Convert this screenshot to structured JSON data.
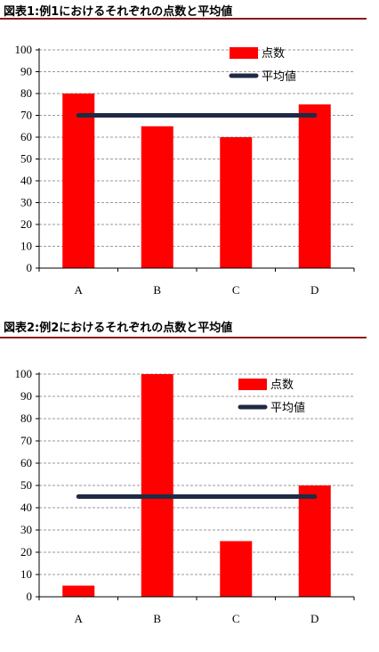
{
  "chart_data": [
    {
      "type": "bar",
      "title": "図表1:例1におけるそれぞれの点数と平均値",
      "categories": [
        "A",
        "B",
        "C",
        "D"
      ],
      "series": [
        {
          "name": "点数",
          "type": "bar",
          "values": [
            80,
            65,
            60,
            75
          ]
        },
        {
          "name": "平均値",
          "type": "line",
          "values": [
            70,
            70,
            70,
            70
          ]
        }
      ],
      "y_ticks": [
        "0",
        "10",
        "20",
        "30",
        "40",
        "50",
        "60",
        "70",
        "80",
        "90",
        "100"
      ],
      "ylim": [
        0,
        100
      ],
      "grid": true,
      "legend": "top-right",
      "colors": {
        "bar": "#ff0000",
        "line": "#1f2a44",
        "title_rule": "#8b1a1a"
      }
    },
    {
      "type": "bar",
      "title": "図表2:例2におけるそれぞれの点数と平均値",
      "categories": [
        "A",
        "B",
        "C",
        "D"
      ],
      "series": [
        {
          "name": "点数",
          "type": "bar",
          "values": [
            5,
            100,
            25,
            50
          ]
        },
        {
          "name": "平均値",
          "type": "line",
          "values": [
            45,
            45,
            45,
            45
          ]
        }
      ],
      "y_ticks": [
        "0",
        "10",
        "20",
        "30",
        "40",
        "50",
        "60",
        "70",
        "80",
        "90",
        "100"
      ],
      "ylim": [
        0,
        100
      ],
      "grid": true,
      "legend": "top-right",
      "colors": {
        "bar": "#ff0000",
        "line": "#1f2a44",
        "title_rule": "#8b1a1a"
      }
    }
  ]
}
